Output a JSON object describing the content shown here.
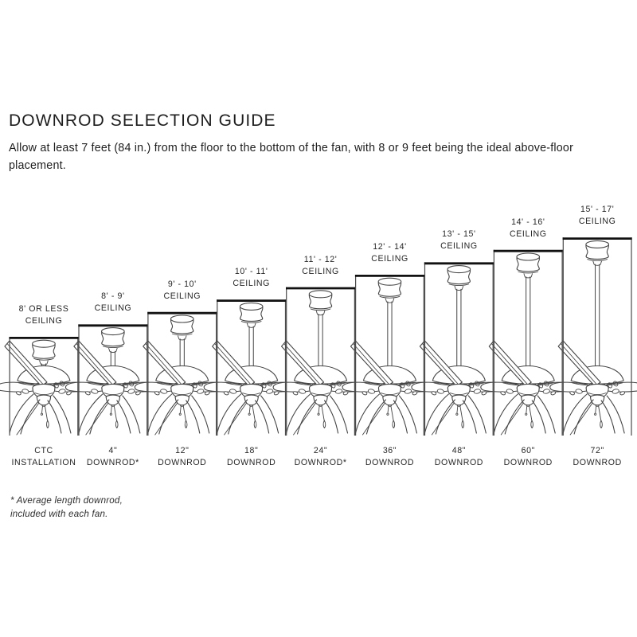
{
  "title": "DOWNROD SELECTION GUIDE",
  "intro": "Allow at least 7 feet (84 in.) from the floor to the bottom of the fan, with 8 or 9 feet being the ideal above-floor placement.",
  "footnote": {
    "line1": "* Average length downrod,",
    "line2": "included with each fan."
  },
  "columns": [
    {
      "ceiling_range": "8' OR LESS",
      "ceiling_word": "CEILING",
      "rod_size": "CTC",
      "rod_word": "INSTALLATION"
    },
    {
      "ceiling_range": "8' - 9'",
      "ceiling_word": "CEILING",
      "rod_size": "4\"",
      "rod_word": "DOWNROD*"
    },
    {
      "ceiling_range": "9' - 10'",
      "ceiling_word": "CEILING",
      "rod_size": "12\"",
      "rod_word": "DOWNROD"
    },
    {
      "ceiling_range": "10' - 11'",
      "ceiling_word": "CEILING",
      "rod_size": "18\"",
      "rod_word": "DOWNROD"
    },
    {
      "ceiling_range": "11' - 12'",
      "ceiling_word": "CEILING",
      "rod_size": "24\"",
      "rod_word": "DOWNROD*"
    },
    {
      "ceiling_range": "12' - 14'",
      "ceiling_word": "CEILING",
      "rod_size": "36\"",
      "rod_word": "DOWNROD"
    },
    {
      "ceiling_range": "13' - 15'",
      "ceiling_word": "CEILING",
      "rod_size": "48\"",
      "rod_word": "DOWNROD"
    },
    {
      "ceiling_range": "14' - 16'",
      "ceiling_word": "CEILING",
      "rod_size": "60\"",
      "rod_word": "DOWNROD"
    },
    {
      "ceiling_range": "15' - 17'",
      "ceiling_word": "CEILING",
      "rod_size": "72\"",
      "rod_word": "DOWNROD"
    }
  ],
  "colors": {
    "line_art": "#454545",
    "border_top": "#111111",
    "border_side": "#4a4a4a",
    "text": "#262626"
  }
}
